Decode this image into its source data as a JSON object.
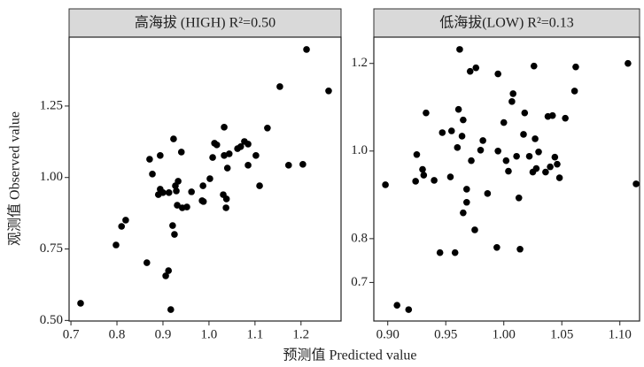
{
  "x_label": "预测值 Predicted value",
  "y_label": "观测值 Observed value",
  "chart_data": [
    {
      "type": "scatter",
      "title": "高海拔 (HIGH) R²=0.50",
      "color": "#000000",
      "xlim": [
        0.696,
        1.287
      ],
      "ylim": [
        0.498,
        1.491
      ],
      "xticks": [
        0.7,
        0.8,
        0.9,
        {
          "value": 1,
          "label": "1.0"
        },
        1.1,
        1.2
      ],
      "yticks": [
        {
          "value": 0.5,
          "label": "0.50"
        },
        0.75,
        {
          "value": 1,
          "label": "1.00"
        },
        1.25
      ],
      "x": [
        0.721,
        0.798,
        0.81,
        0.819,
        0.865,
        0.871,
        0.877,
        0.89,
        0.894,
        0.894,
        0.9,
        0.913,
        0.906,
        0.912,
        0.917,
        0.921,
        0.925,
        0.923,
        0.927,
        0.929,
        0.931,
        0.933,
        0.94,
        0.942,
        0.952,
        0.962,
        0.985,
        0.987,
        0.988,
        1.002,
        1.008,
        1.012,
        1.017,
        1.031,
        1.033,
        1.033,
        1.037,
        1.038,
        1.04,
        1.044,
        1.062,
        1.069,
        1.077,
        1.085,
        1.085,
        1.102,
        1.11,
        1.127,
        1.154,
        1.173,
        1.204,
        1.212,
        1.26
      ],
      "values": [
        0.56,
        0.764,
        0.829,
        0.851,
        0.702,
        1.064,
        1.012,
        0.94,
        0.959,
        1.077,
        0.947,
        0.947,
        0.656,
        0.674,
        0.538,
        0.832,
        0.801,
        1.135,
        0.971,
        0.953,
        0.903,
        0.987,
        1.089,
        0.894,
        0.897,
        0.95,
        0.919,
        0.971,
        0.916,
        0.996,
        1.07,
        1.12,
        1.114,
        0.94,
        1.077,
        1.176,
        0.894,
        0.925,
        1.033,
        1.083,
        1.101,
        1.108,
        1.126,
        1.043,
        1.117,
        1.077,
        0.971,
        1.173,
        1.318,
        1.043,
        1.046,
        1.448,
        1.303
      ]
    },
    {
      "type": "scatter",
      "title": "低海拔(LOW) R²=0.13",
      "color": "#000000",
      "xlim": [
        0.888,
        1.117
      ],
      "ylim": [
        0.612,
        1.26
      ],
      "xticks": [
        {
          "value": 0.9,
          "label": "0.90"
        },
        0.95,
        {
          "value": 1,
          "label": "1.00"
        },
        1.05,
        {
          "value": 1.1,
          "label": "1.10"
        }
      ],
      "yticks": [
        0.7,
        0.8,
        {
          "value": 1,
          "label": "1.0"
        },
        1.2
      ],
      "x": [
        0.898,
        0.908,
        0.918,
        0.924,
        0.925,
        0.93,
        0.931,
        0.933,
        0.94,
        0.945,
        0.947,
        0.954,
        0.955,
        0.958,
        0.96,
        0.961,
        0.962,
        0.964,
        0.965,
        0.965,
        0.968,
        0.968,
        0.971,
        0.972,
        0.975,
        0.976,
        0.98,
        0.982,
        0.986,
        0.994,
        0.995,
        0.995,
        1.0,
        1.002,
        1.004,
        1.007,
        1.008,
        1.011,
        1.013,
        1.014,
        1.017,
        1.018,
        1.022,
        1.025,
        1.026,
        1.027,
        1.028,
        1.03,
        1.036,
        1.038,
        1.04,
        1.042,
        1.044,
        1.046,
        1.048,
        1.053,
        1.061,
        1.062,
        1.107,
        1.114
      ],
      "values": [
        0.923,
        0.648,
        0.638,
        0.931,
        0.992,
        0.958,
        0.945,
        1.087,
        0.933,
        0.768,
        1.042,
        0.941,
        1.046,
        0.768,
        1.008,
        1.095,
        1.232,
        1.034,
        0.859,
        1.071,
        0.913,
        0.883,
        1.182,
        0.978,
        0.82,
        1.19,
        1.002,
        1.024,
        0.903,
        0.78,
        1.0,
        1.176,
        1.065,
        0.978,
        0.954,
        1.113,
        1.131,
        0.988,
        0.893,
        0.776,
        1.038,
        1.087,
        0.988,
        0.952,
        1.194,
        1.028,
        0.96,
        0.998,
        0.952,
        1.079,
        0.964,
        1.081,
        0.986,
        0.97,
        0.939,
        1.075,
        1.137,
        1.192,
        1.2,
        0.925
      ]
    }
  ]
}
